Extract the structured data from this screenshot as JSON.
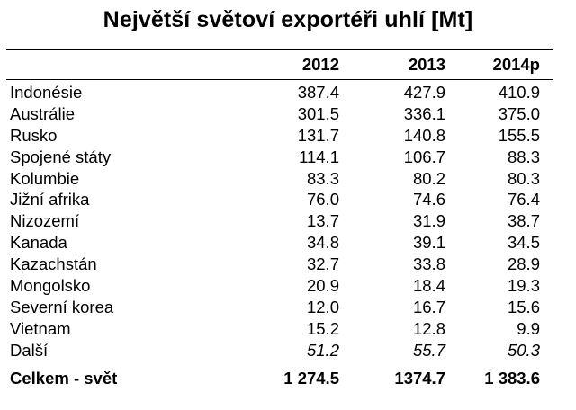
{
  "title": "Největší světoví exportéři uhlí [Mt]",
  "header": {
    "country": "",
    "y2012": "2012",
    "y2013": "2013",
    "y2014": "2014p"
  },
  "rows": [
    {
      "country": "Indonésie",
      "y2012": "387.4",
      "y2013": "427.9",
      "y2014": "410.9"
    },
    {
      "country": "Austrálie",
      "y2012": "301.5",
      "y2013": "336.1",
      "y2014": "375.0"
    },
    {
      "country": "Rusko",
      "y2012": "131.7",
      "y2013": "140.8",
      "y2014": "155.5"
    },
    {
      "country": "Spojené státy",
      "y2012": "114.1",
      "y2013": "106.7",
      "y2014": "88.3"
    },
    {
      "country": "Kolumbie",
      "y2012": "83.3",
      "y2013": "80.2",
      "y2014": "80.3"
    },
    {
      "country": "Jižní afrika",
      "y2012": "76.0",
      "y2013": "74.6",
      "y2014": "76.4"
    },
    {
      "country": "Nizozemí",
      "y2012": "13.7",
      "y2013": "31.9",
      "y2014": "38.7"
    },
    {
      "country": "Kanada",
      "y2012": "34.8",
      "y2013": "39.1",
      "y2014": "34.5"
    },
    {
      "country": "Kazachstán",
      "y2012": "32.7",
      "y2013": "33.8",
      "y2014": "28.9"
    },
    {
      "country": "Mongolsko",
      "y2012": "20.9",
      "y2013": "18.4",
      "y2014": "19.3"
    },
    {
      "country": "Severní korea",
      "y2012": "12.0",
      "y2013": "16.7",
      "y2014": "15.6"
    },
    {
      "country": "Vietnam",
      "y2012": "15.2",
      "y2013": "12.8",
      "y2014": "9.9"
    },
    {
      "country": "Další",
      "y2012": "51.2",
      "y2013": "55.7",
      "y2014": "50.3"
    }
  ],
  "total": {
    "country": "Celkem - svět",
    "y2012": "1 274.5",
    "y2013": "1374.7",
    "y2014": "1 383.6"
  }
}
